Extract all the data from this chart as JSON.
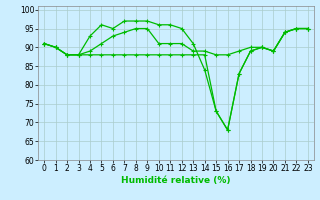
{
  "xlabel": "Humidité relative (%)",
  "background_color": "#cceeff",
  "grid_color": "#aacccc",
  "line_color": "#00bb00",
  "ylim": [
    60,
    101
  ],
  "xlim": [
    -0.5,
    23.5
  ],
  "yticks": [
    60,
    65,
    70,
    75,
    80,
    85,
    90,
    95,
    100
  ],
  "xticks": [
    0,
    1,
    2,
    3,
    4,
    5,
    6,
    7,
    8,
    9,
    10,
    11,
    12,
    13,
    14,
    15,
    16,
    17,
    18,
    19,
    20,
    21,
    22,
    23
  ],
  "series": [
    [
      91,
      90,
      88,
      88,
      93,
      96,
      95,
      97,
      97,
      97,
      96,
      96,
      95,
      91,
      84,
      73,
      68,
      83,
      89,
      90,
      89,
      94,
      95,
      95
    ],
    [
      91,
      90,
      88,
      88,
      89,
      91,
      93,
      94,
      95,
      95,
      91,
      91,
      91,
      89,
      89,
      88,
      88,
      89,
      90,
      90,
      89,
      94,
      95,
      95
    ],
    [
      91,
      90,
      88,
      88,
      88,
      88,
      88,
      88,
      88,
      88,
      88,
      88,
      88,
      88,
      88,
      73,
      68,
      83,
      89,
      90,
      89,
      94,
      95,
      95
    ]
  ],
  "tick_fontsize": 5.5,
  "xlabel_fontsize": 6.5
}
